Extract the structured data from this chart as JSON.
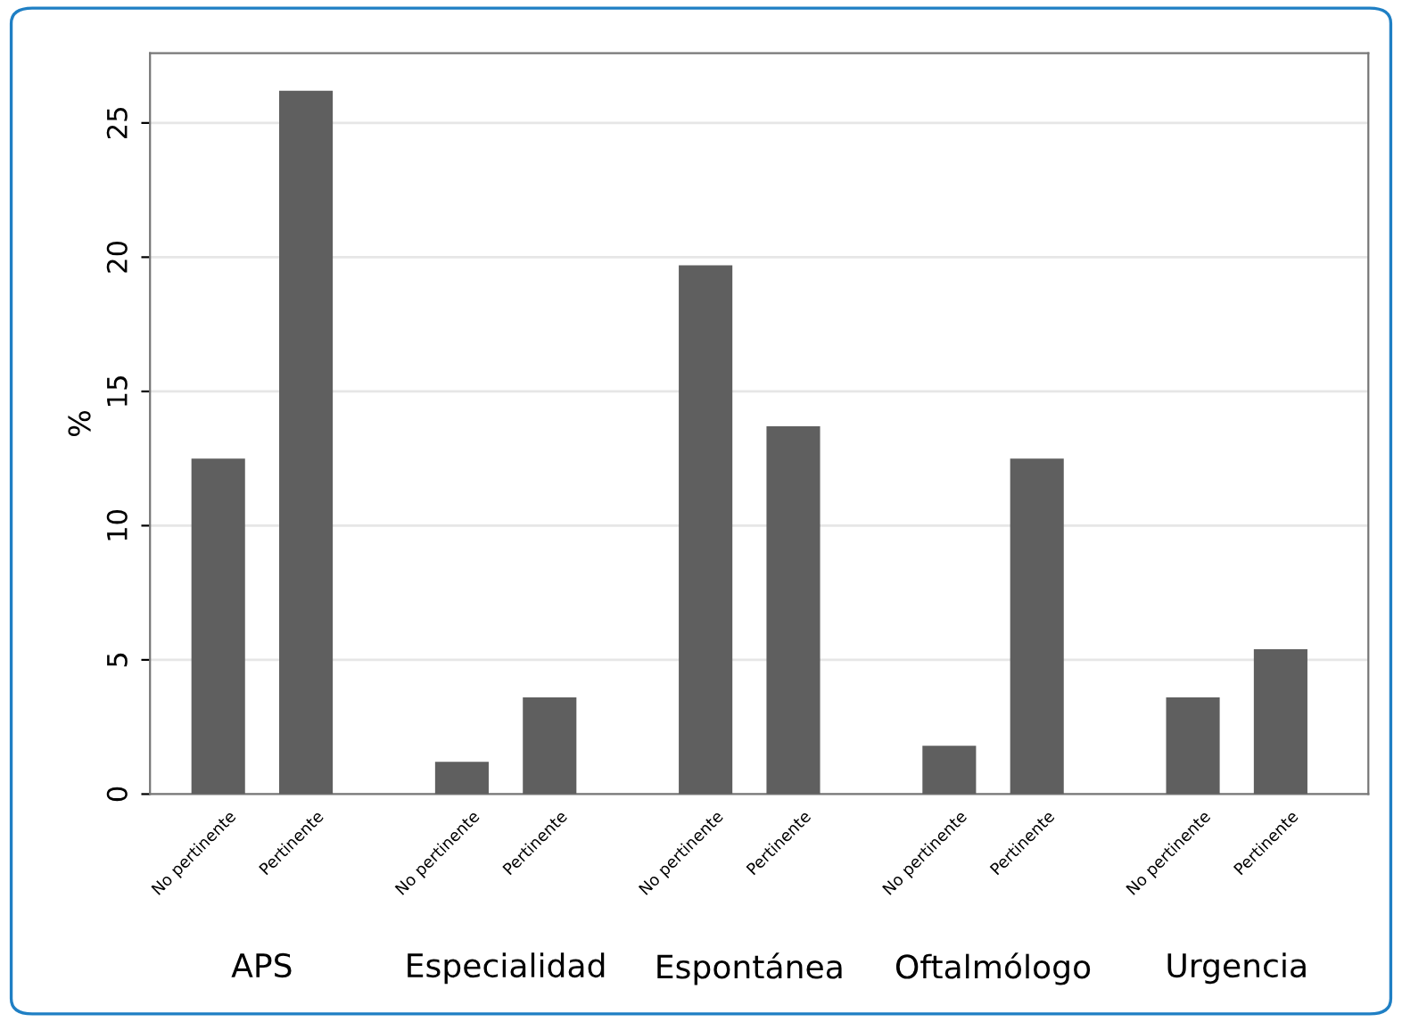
{
  "chart_data": {
    "type": "bar",
    "ylabel": "%",
    "categories": [
      "APS",
      "Especialidad",
      "Espontánea",
      "Oftalmólogo",
      "Urgencia"
    ],
    "series": [
      {
        "name": "No pertinente",
        "color": "#5f5f5f",
        "values": [
          12.5,
          1.2,
          19.7,
          1.8,
          3.6
        ]
      },
      {
        "name": "Pertinente",
        "color": "#5f5f5f",
        "values": [
          26.2,
          3.6,
          13.7,
          12.5,
          5.4
        ]
      }
    ],
    "ylim": [
      0,
      27.6
    ],
    "yticks": [
      0,
      5,
      10,
      15,
      20,
      25
    ],
    "grid": "y",
    "legend": false
  }
}
